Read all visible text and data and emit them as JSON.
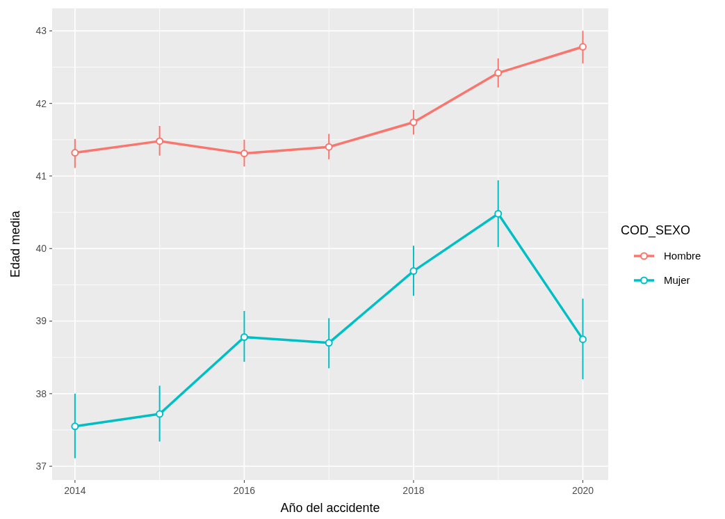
{
  "chart_data": {
    "type": "line",
    "xlabel": "Año del accidente",
    "ylabel": "Edad media",
    "legend_title": "COD_SEXO",
    "x": [
      2014,
      2015,
      2016,
      2017,
      2018,
      2019,
      2020
    ],
    "series": [
      {
        "name": "Hombre",
        "color": "#f8766d",
        "values": [
          41.32,
          41.48,
          41.31,
          41.4,
          41.74,
          42.42,
          42.78
        ],
        "errors": [
          [
            41.11,
            41.51
          ],
          [
            41.28,
            41.69
          ],
          [
            41.13,
            41.5
          ],
          [
            41.23,
            41.58
          ],
          [
            41.57,
            41.91
          ],
          [
            42.22,
            42.62
          ],
          [
            42.55,
            43.0
          ]
        ]
      },
      {
        "name": "Mujer",
        "color": "#00bfc4",
        "values": [
          37.55,
          37.72,
          38.78,
          38.7,
          39.69,
          40.48,
          38.75
        ],
        "errors": [
          [
            37.11,
            38.0
          ],
          [
            37.34,
            38.11
          ],
          [
            38.44,
            39.14
          ],
          [
            38.35,
            39.04
          ],
          [
            39.35,
            40.04
          ],
          [
            40.02,
            40.94
          ],
          [
            38.2,
            39.31
          ]
        ]
      }
    ],
    "xlim": [
      2013.73,
      2020.3
    ],
    "ylim": [
      36.81,
      43.31
    ],
    "xticks": [
      2014,
      2016,
      2018,
      2020
    ],
    "yticks": [
      37,
      38,
      39,
      40,
      41,
      42,
      43
    ],
    "grid": true,
    "legend": "right",
    "marker": "circle",
    "line_style": "solid"
  }
}
